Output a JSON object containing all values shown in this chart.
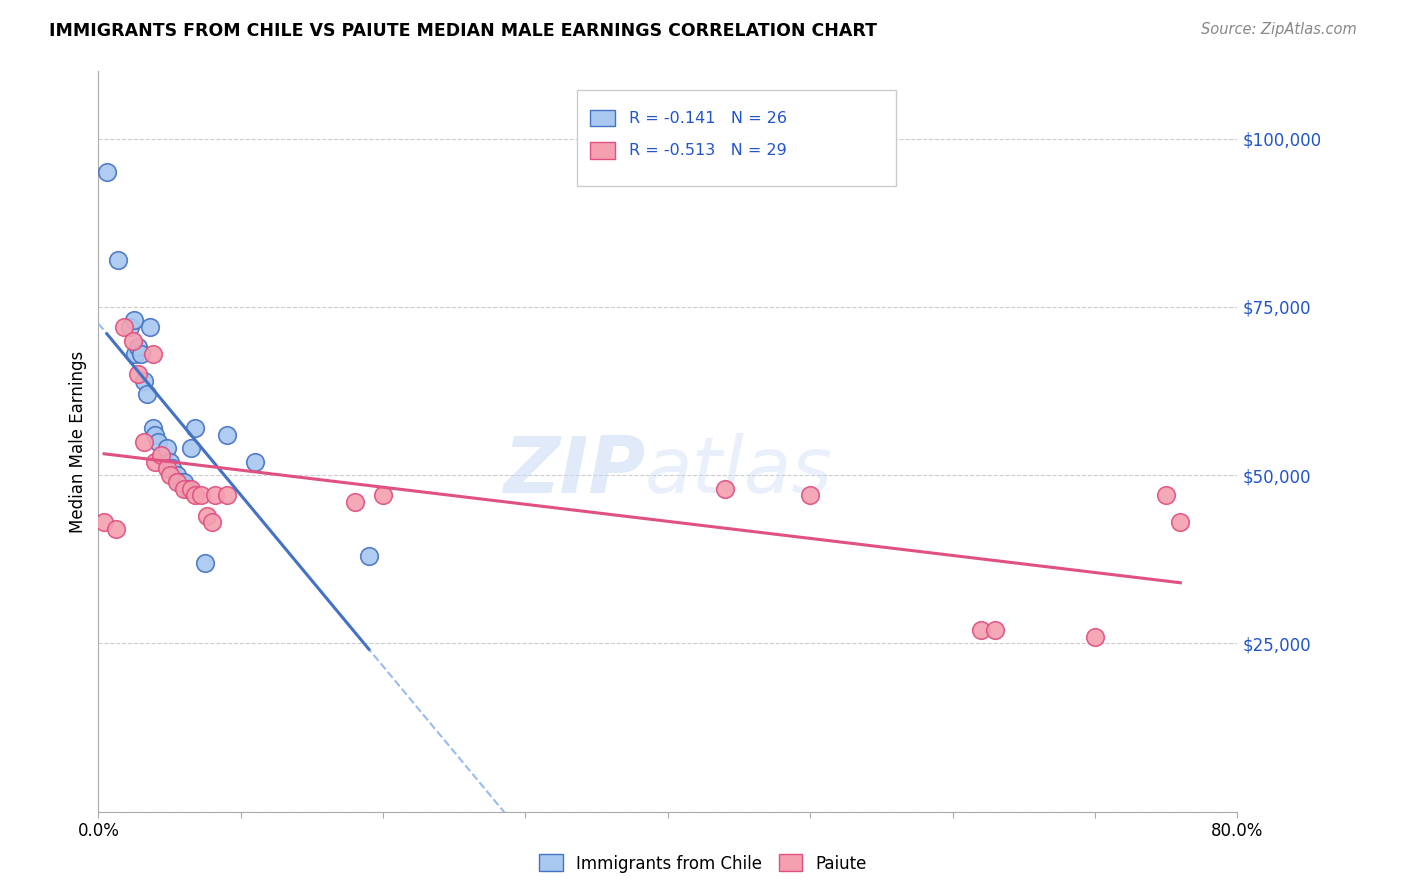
{
  "title": "IMMIGRANTS FROM CHILE VS PAIUTE MEDIAN MALE EARNINGS CORRELATION CHART",
  "source": "Source: ZipAtlas.com",
  "ylabel": "Median Male Earnings",
  "xlim": [
    0.0,
    0.8
  ],
  "ylim": [
    0,
    110000
  ],
  "xticks": [
    0.0,
    0.1,
    0.2,
    0.3,
    0.4,
    0.5,
    0.6,
    0.7,
    0.8
  ],
  "xticklabels": [
    "0.0%",
    "",
    "",
    "",
    "",
    "",
    "",
    "",
    "80.0%"
  ],
  "yticks_right": [
    0,
    25000,
    50000,
    75000,
    100000
  ],
  "ytick_labels_right": [
    "",
    "$25,000",
    "$50,000",
    "$75,000",
    "$100,000"
  ],
  "legend_labels": [
    "Immigrants from Chile",
    "Paiute"
  ],
  "chile_R": "-0.141",
  "chile_N": "26",
  "paiute_R": "-0.513",
  "paiute_N": "29",
  "chile_color": "#a8c8f0",
  "chile_edge_color": "#4472c4",
  "paiute_color": "#f4a0b0",
  "paiute_edge_color": "#e05080",
  "chile_line_color": "#4472c4",
  "paiute_line_color": "#e05080",
  "dashed_line_color": "#99bbee",
  "background_color": "#ffffff",
  "grid_color": "#cccccc",
  "chile_x": [
    0.006,
    0.014,
    0.022,
    0.025,
    0.026,
    0.028,
    0.03,
    0.032,
    0.034,
    0.036,
    0.038,
    0.04,
    0.042,
    0.048,
    0.05,
    0.052,
    0.055,
    0.058,
    0.06,
    0.063,
    0.065,
    0.068,
    0.075,
    0.09,
    0.11,
    0.19
  ],
  "chile_y": [
    95000,
    82000,
    72000,
    73000,
    68000,
    69000,
    68000,
    64000,
    62000,
    72000,
    57000,
    56000,
    55000,
    54000,
    52000,
    51000,
    50000,
    49000,
    49000,
    48000,
    54000,
    57000,
    37000,
    56000,
    52000,
    38000
  ],
  "paiute_x": [
    0.004,
    0.012,
    0.018,
    0.024,
    0.028,
    0.032,
    0.038,
    0.04,
    0.044,
    0.048,
    0.05,
    0.055,
    0.06,
    0.065,
    0.068,
    0.072,
    0.076,
    0.08,
    0.082,
    0.09,
    0.18,
    0.2,
    0.44,
    0.5,
    0.62,
    0.63,
    0.7,
    0.75,
    0.76
  ],
  "paiute_y": [
    43000,
    42000,
    72000,
    70000,
    65000,
    55000,
    68000,
    52000,
    53000,
    51000,
    50000,
    49000,
    48000,
    48000,
    47000,
    47000,
    44000,
    43000,
    47000,
    47000,
    46000,
    47000,
    48000,
    47000,
    27000,
    27000,
    26000,
    47000,
    43000
  ]
}
